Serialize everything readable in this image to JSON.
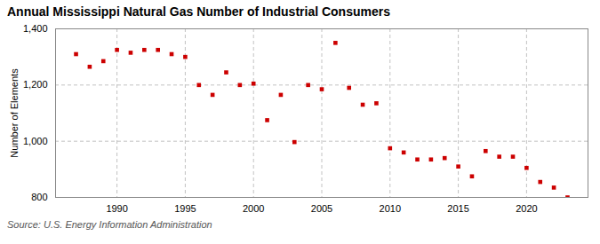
{
  "chart_data": {
    "type": "scatter",
    "title": "Annual Mississippi Natural Gas Number of Industrial Consumers",
    "ylabel": "Number of Elements",
    "source": "Source: U.S. Energy Information Administration",
    "x": [
      1987,
      1988,
      1989,
      1990,
      1991,
      1992,
      1993,
      1994,
      1995,
      1996,
      1997,
      1998,
      1999,
      2000,
      2001,
      2002,
      2003,
      2004,
      2005,
      2006,
      2007,
      2008,
      2009,
      2010,
      2011,
      2012,
      2013,
      2014,
      2015,
      2016,
      2017,
      2018,
      2019,
      2020,
      2021,
      2022,
      2023
    ],
    "values": [
      1310,
      1265,
      1285,
      1325,
      1315,
      1325,
      1325,
      1310,
      1300,
      1200,
      1165,
      1245,
      1200,
      1205,
      1075,
      1165,
      997,
      1200,
      1185,
      1350,
      1190,
      1130,
      1135,
      975,
      960,
      935,
      935,
      940,
      910,
      875,
      965,
      945,
      945,
      905,
      855,
      835,
      800
    ],
    "color": "#cc0000",
    "marker": "square",
    "xlim": [
      1985.5,
      2024.5
    ],
    "xticks": [
      1990,
      1995,
      2000,
      2005,
      2010,
      2015,
      2020
    ],
    "ylim": [
      800,
      1400
    ],
    "yticks": [
      800,
      {
        "value": 1000,
        "label": "1,000"
      },
      {
        "value": 1200,
        "label": "1,200"
      },
      {
        "value": 1400,
        "label": "1,400"
      }
    ],
    "grid": true
  }
}
